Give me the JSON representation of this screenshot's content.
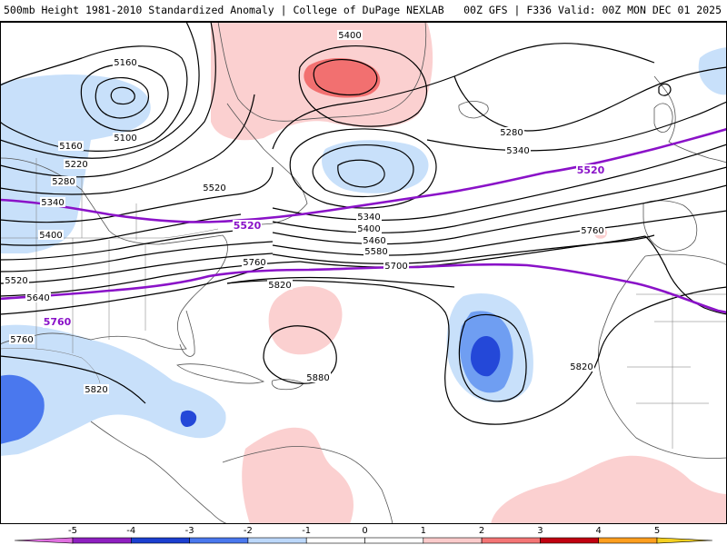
{
  "header": {
    "left_title": "500mb Height 1981-2010 Standardized Anomaly | College of DuPage NEXLAB",
    "right_title": "00Z GFS | F336 Valid: 00Z MON DEC 01 2025"
  },
  "contour_labels": [
    {
      "text": "5160",
      "id": "contour-label-5160-a"
    },
    {
      "text": "5100",
      "id": "contour-label-5100"
    },
    {
      "text": "5160",
      "id": "contour-label-5160-b"
    },
    {
      "text": "5220",
      "id": "contour-label-5220"
    },
    {
      "text": "5280",
      "id": "contour-label-5280-a"
    },
    {
      "text": "5340",
      "id": "contour-label-5340-a"
    },
    {
      "text": "5400",
      "id": "contour-label-5400-a"
    },
    {
      "text": "5520",
      "id": "contour-label-5520-a"
    },
    {
      "text": "5640",
      "id": "contour-label-5640"
    },
    {
      "text": "5760",
      "id": "contour-label-5760-a"
    },
    {
      "text": "5820",
      "id": "contour-label-5820-a"
    },
    {
      "text": "5400",
      "id": "contour-label-5400-b"
    },
    {
      "text": "5520",
      "id": "contour-label-5520-b"
    },
    {
      "text": "5340",
      "id": "contour-label-5340-b"
    },
    {
      "text": "5400",
      "id": "contour-label-5400-c"
    },
    {
      "text": "5460",
      "id": "contour-label-5460"
    },
    {
      "text": "5580",
      "id": "contour-label-5580"
    },
    {
      "text": "5700",
      "id": "contour-label-5700"
    },
    {
      "text": "5760",
      "id": "contour-label-5760-b"
    },
    {
      "text": "5820",
      "id": "contour-label-5820-b"
    },
    {
      "text": "5880",
      "id": "contour-label-5880"
    },
    {
      "text": "5280",
      "id": "contour-label-5280-b"
    },
    {
      "text": "5340",
      "id": "contour-label-5340-c"
    },
    {
      "text": "5760",
      "id": "contour-label-5760-c"
    },
    {
      "text": "5820",
      "id": "contour-label-5820-c"
    }
  ],
  "highlight_labels": [
    {
      "text": "5520",
      "id": "highlight-label-5520-west"
    },
    {
      "text": "5520",
      "id": "highlight-label-5520-east"
    },
    {
      "text": "5760",
      "id": "highlight-label-5760"
    }
  ],
  "colorbar": {
    "ticks": [
      "-5",
      "-4",
      "-3",
      "-2",
      "-1",
      "0",
      "1",
      "2",
      "3",
      "4",
      "5"
    ],
    "colors": [
      "#e070e0",
      "#8e1fc0",
      "#1b3fd0",
      "#4a78ee",
      "#bcd8fa",
      "#ffffff",
      "#ffffff",
      "#fbcbcb",
      "#f47575",
      "#c00010",
      "#ff9f1f",
      "#f4d020"
    ]
  },
  "colors": {
    "highlight_contour": "#8a12c8",
    "contour": "#000000",
    "neg_anomaly_light": "#c8e0fa",
    "neg_anomaly_mid": "#6f9ef2",
    "neg_anomaly_dark": "#2448d8",
    "pos_anomaly_light": "#fbd0d0",
    "pos_anomaly_mid": "#f27070"
  }
}
